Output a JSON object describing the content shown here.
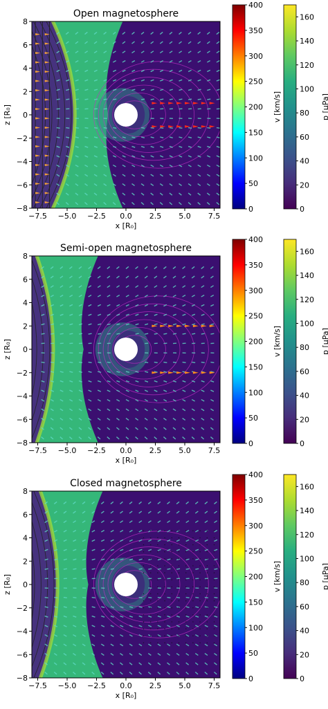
{
  "chart_data": [
    {
      "type": "heatmap",
      "title": "Open magnetosphere",
      "xlabel": "x [R₀]",
      "ylabel": "z [R₀]",
      "xlim": [
        -8,
        8
      ],
      "ylim": [
        -8,
        8
      ],
      "xticks": [
        "−7.5",
        "−5.0",
        "−2.5",
        "0.0",
        "2.5",
        "5.0",
        "7.5"
      ],
      "yticks": [
        "8",
        "6",
        "4",
        "2",
        "0",
        "−2",
        "−4",
        "−6",
        "−8"
      ],
      "colorbars": [
        {
          "label": "v [km/s]",
          "range": [
            0,
            400
          ],
          "ticks": [
            "400",
            "350",
            "300",
            "250",
            "200",
            "150",
            "100",
            "50",
            "0"
          ],
          "colormap": "jet"
        },
        {
          "label": "p [μPa]",
          "range": [
            0,
            170
          ],
          "ticks": [
            "160",
            "140",
            "120",
            "100",
            "80",
            "60",
            "40",
            "20",
            "0"
          ],
          "colormap": "viridis"
        }
      ],
      "bow_shock_standoff": -3.3,
      "shock_flank_at_z8": -6.5,
      "dayside_field_lines": "open, draped over magnetopause",
      "tail_jets": "high-speed outflow near z=±1 for x>2"
    },
    {
      "type": "heatmap",
      "title": "Semi-open magnetosphere",
      "xlabel": "x [R₀]",
      "ylabel": "z [R₀]",
      "xlim": [
        -8,
        8
      ],
      "ylim": [
        -8,
        8
      ],
      "xticks": [
        "−7.5",
        "−5.0",
        "−2.5",
        "0.0",
        "2.5",
        "5.0",
        "7.5"
      ],
      "yticks": [
        "8",
        "6",
        "4",
        "2",
        "0",
        "−2",
        "−4",
        "−6",
        "−8"
      ],
      "colorbars": [
        {
          "label": "v [km/s]",
          "range": [
            0,
            400
          ],
          "ticks": [
            "400",
            "350",
            "300",
            "250",
            "200",
            "150",
            "100",
            "50",
            "0"
          ],
          "colormap": "jet"
        },
        {
          "label": "p [μPa]",
          "range": [
            0,
            170
          ],
          "ticks": [
            "160",
            "140",
            "120",
            "100",
            "80",
            "60",
            "40",
            "20",
            "0"
          ],
          "colormap": "viridis"
        }
      ],
      "bow_shock_standoff": -5.4,
      "shock_flank_at_z8": -7.8,
      "dayside_field_lines": "partly open",
      "tail_jets": "moderate outflow near z=±2 for x>2"
    },
    {
      "type": "heatmap",
      "title": "Closed magnetosphere",
      "xlabel": "x [R₀]",
      "ylabel": "z [R₀]",
      "xlim": [
        -8,
        8
      ],
      "ylim": [
        -8,
        8
      ],
      "xticks": [
        "−7.5",
        "−5.0",
        "−2.5",
        "0.0",
        "2.5",
        "5.0",
        "7.5"
      ],
      "yticks": [
        "8",
        "6",
        "4",
        "2",
        "0",
        "−2",
        "−4",
        "−6",
        "−8"
      ],
      "colorbars": [
        {
          "label": "v [km/s]",
          "range": [
            0,
            400
          ],
          "ticks": [
            "400",
            "350",
            "300",
            "250",
            "200",
            "150",
            "100",
            "50",
            "0"
          ],
          "colormap": "jet"
        },
        {
          "label": "p [μPa]",
          "range": [
            0,
            170
          ],
          "ticks": [
            "160",
            "140",
            "120",
            "100",
            "80",
            "60",
            "40",
            "20",
            "0"
          ],
          "colormap": "viridis"
        }
      ],
      "bow_shock_standoff": -5.0,
      "shock_flank_at_z8": -7.5,
      "dayside_field_lines": "closed dipole loops",
      "tail_jets": "none"
    }
  ],
  "colors": {
    "solar_wind_background": "#46327e",
    "sheath_fill": "#35b779",
    "shock_front": "#9bd93c",
    "magnetosphere_fill": "#3b0f70",
    "planet": "#ffffff",
    "field_lines": "#c02fc4",
    "open_field_lines": "#222222",
    "arrow_fast": "#fca636"
  }
}
